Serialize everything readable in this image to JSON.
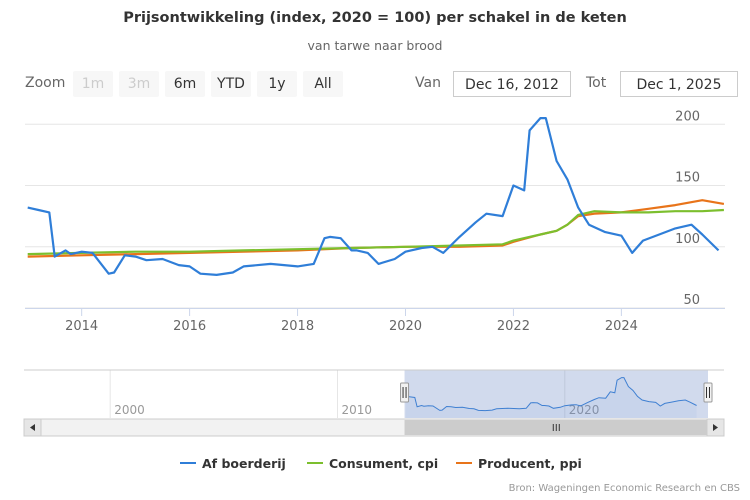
{
  "header": {
    "title": "Prijsontwikkeling (index, 2020 = 100) per schakel in de keten",
    "subtitle": "van tarwe naar brood"
  },
  "range_selector": {
    "zoom_label": "Zoom",
    "buttons": [
      {
        "label": "1m",
        "enabled": false
      },
      {
        "label": "3m",
        "enabled": false
      },
      {
        "label": "6m",
        "enabled": true
      },
      {
        "label": "YTD",
        "enabled": true
      },
      {
        "label": "1y",
        "enabled": true
      },
      {
        "label": "All",
        "enabled": true
      }
    ],
    "from_label": "Van",
    "from_value": "Dec 16, 2012",
    "to_label": "Tot",
    "to_value": "Dec 1, 2025"
  },
  "navigator": {
    "tick_labels": [
      "2000",
      "2010",
      "2020"
    ],
    "range_start_year": 2012.95,
    "range_end_year": 2025.92
  },
  "credits": "Bron: Wageningen Economic Research en CBS",
  "colors": {
    "af_boerderij": "#2f7ed8",
    "consument": "#7cbf2e",
    "producent": "#e8741a"
  },
  "chart_data": {
    "type": "line",
    "title": "Prijsontwikkeling (index, 2020 = 100) per schakel in de keten",
    "subtitle": "van tarwe naar brood",
    "x_axis": {
      "type": "datetime",
      "range": [
        2012.95,
        2025.92
      ],
      "ticks": [
        "2014",
        "2016",
        "2018",
        "2020",
        "2022",
        "2024"
      ]
    },
    "y_axis": {
      "range": [
        50,
        210
      ],
      "ticks": [
        "50",
        "100",
        "150",
        "200"
      ],
      "opposite": true
    },
    "grid": true,
    "legend_position": "bottom",
    "series": [
      {
        "name": "Af boerderij",
        "x": [
          2013.0,
          2013.2,
          2013.4,
          2013.5,
          2013.7,
          2013.8,
          2014.0,
          2014.2,
          2014.5,
          2014.6,
          2014.8,
          2015.0,
          2015.2,
          2015.5,
          2015.8,
          2016.0,
          2016.2,
          2016.5,
          2016.8,
          2017.0,
          2017.5,
          2018.0,
          2018.3,
          2018.5,
          2018.6,
          2018.8,
          2019.0,
          2019.1,
          2019.3,
          2019.5,
          2019.8,
          2020.0,
          2020.3,
          2020.5,
          2020.7,
          2021.0,
          2021.3,
          2021.5,
          2021.8,
          2022.0,
          2022.2,
          2022.3,
          2022.5,
          2022.6,
          2022.8,
          2023.0,
          2023.2,
          2023.4,
          2023.7,
          2024.0,
          2024.2,
          2024.4,
          2024.7,
          2025.0,
          2025.3,
          2025.5,
          2025.8
        ],
        "y": [
          132,
          130,
          128,
          92,
          97,
          94,
          96,
          95,
          78,
          79,
          93,
          92,
          89,
          90,
          85,
          84,
          78,
          77,
          79,
          84,
          86,
          84,
          86,
          107,
          108,
          107,
          97,
          97,
          95,
          86,
          90,
          96,
          99,
          100,
          95,
          108,
          120,
          127,
          125,
          150,
          146,
          195,
          205,
          205,
          170,
          155,
          132,
          118,
          112,
          109,
          95,
          105,
          110,
          115,
          118,
          110,
          97
        ]
      },
      {
        "name": "Consument, cpi",
        "x": [
          2013.0,
          2014.0,
          2015.0,
          2016.0,
          2017.0,
          2018.0,
          2019.0,
          2020.0,
          2021.0,
          2021.8,
          2022.0,
          2022.5,
          2022.8,
          2023.0,
          2023.2,
          2023.5,
          2024.0,
          2024.5,
          2025.0,
          2025.5,
          2025.9
        ],
        "y": [
          94,
          95,
          96,
          96,
          97,
          98,
          99,
          100,
          101,
          102,
          105,
          110,
          113,
          118,
          126,
          129,
          128,
          128,
          129,
          129,
          130
        ]
      },
      {
        "name": "Producent, ppi",
        "x": [
          2013.0,
          2014.0,
          2015.0,
          2016.0,
          2017.0,
          2018.0,
          2019.0,
          2020.0,
          2021.0,
          2021.8,
          2022.0,
          2022.5,
          2022.8,
          2023.0,
          2023.2,
          2023.5,
          2024.0,
          2024.5,
          2025.0,
          2025.5,
          2025.9
        ],
        "y": [
          92,
          93,
          94,
          95,
          96,
          97,
          99,
          100,
          100,
          101,
          104,
          110,
          113,
          118,
          125,
          127,
          128,
          131,
          134,
          138,
          135
        ]
      }
    ]
  }
}
